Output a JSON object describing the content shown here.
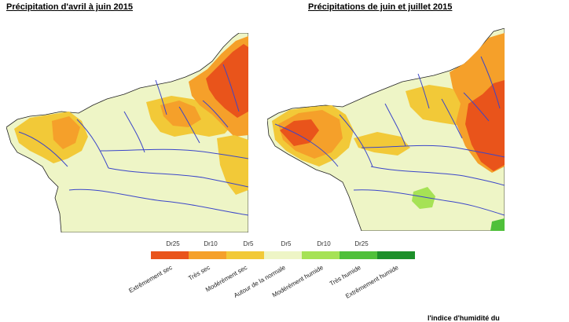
{
  "titles": {
    "left": "Précipitation d'avril à juin 2015",
    "right": "Précipitations de juin et juillet 2015"
  },
  "colors": {
    "extreme_sec": "#e9541b",
    "tres_sec": "#f5a02a",
    "moderement_sec": "#f2c938",
    "normal": "#eef5c6",
    "moderement_humide": "#a6e255",
    "tres_humide": "#4fc03a",
    "extreme_humide": "#1c8f2a",
    "river": "#3b46c9",
    "coast": "#222222"
  },
  "legend": {
    "thresholds": [
      "Dr25",
      "Dr10",
      "Dr5",
      "Dr5",
      "Dr10",
      "Dr25"
    ],
    "categories": [
      "Extrêmement sec",
      "Très sec",
      "Modérément sec",
      "Autour de la normale",
      "Modérément humide",
      "Très humide",
      "Extrêmement humide"
    ]
  },
  "footer": "l'indice d'humidité du"
}
